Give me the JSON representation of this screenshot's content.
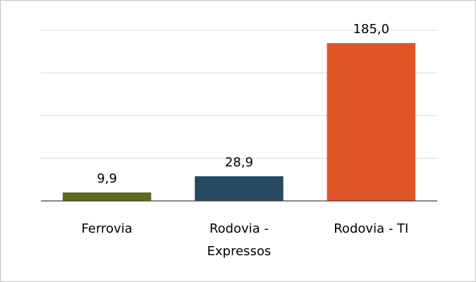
{
  "chart_data": {
    "type": "bar",
    "categories": [
      "Ferrovia",
      "Rodovia - Expressos",
      "Rodovia - TI"
    ],
    "series": [
      {
        "colors": [
          "#5b6b1c",
          "#264a60",
          "#e05527"
        ],
        "values": [
          9.9,
          28.9,
          185.0
        ],
        "value_labels": [
          "9,9",
          "28,9",
          "185,0"
        ]
      }
    ],
    "ylim": [
      0,
      200
    ],
    "yticks": [
      0,
      50,
      100,
      150,
      200
    ],
    "grid": true
  }
}
